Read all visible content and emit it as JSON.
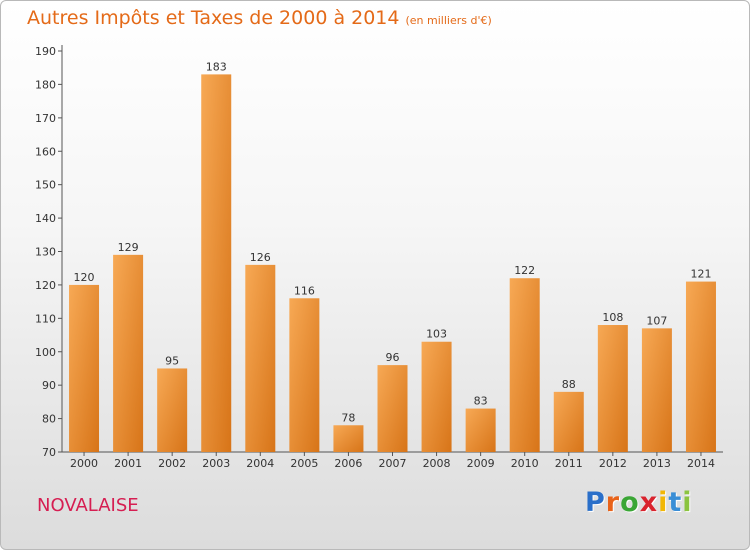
{
  "header": {
    "title": "Autres Impôts et Taxes de 2000 à 2014",
    "unit": "(en milliers d'€)"
  },
  "footer": {
    "place": "NOVALAISE",
    "logo": [
      "P",
      "r",
      "o",
      "x",
      "i",
      "t",
      "i"
    ],
    "logo_colors": [
      "#2a6fc9",
      "#e8631a",
      "#3aa635",
      "#d9232d",
      "#f2b705",
      "#3a8ed6",
      "#8bc43f"
    ]
  },
  "colors": {
    "bar_light": "#f7a955",
    "bar_dark": "#d77418",
    "title": "#e46a18",
    "place": "#d61e52"
  },
  "chart_data": {
    "type": "bar",
    "title": "Autres Impôts et Taxes de 2000 à 2014",
    "categories": [
      "2000",
      "2001",
      "2002",
      "2003",
      "2004",
      "2005",
      "2006",
      "2007",
      "2008",
      "2009",
      "2010",
      "2011",
      "2012",
      "2013",
      "2014"
    ],
    "values": [
      120,
      129,
      95,
      183,
      126,
      116,
      78,
      96,
      103,
      83,
      122,
      88,
      108,
      107,
      121
    ],
    "ylim": [
      70,
      190
    ],
    "yticks": [
      "70",
      "80",
      "90",
      "100",
      "110",
      "120",
      "130",
      "140",
      "150",
      "160",
      "170",
      "180",
      "190"
    ],
    "grid": false,
    "xlabel": "",
    "ylabel": ""
  }
}
